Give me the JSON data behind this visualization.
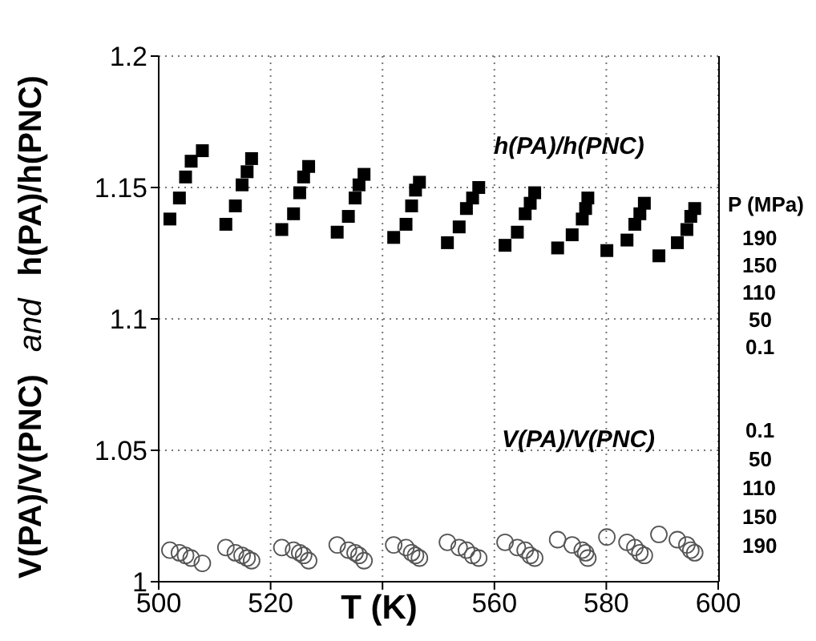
{
  "chart_data": {
    "type": "scatter",
    "xlabel": "T (K)",
    "ylabel": "V(PA)/V(PNC) and h(PA)/h(PNC)",
    "xlim": [
      500,
      600
    ],
    "xticks": [
      500,
      520,
      {
        "value": 540,
        "label": null
      },
      560,
      580,
      600
    ],
    "ylim": [
      1,
      1.2
    ],
    "yticks": [
      1,
      1.05,
      1.1,
      1.15,
      1.2
    ],
    "grid": true,
    "series": [
      {
        "color": "#000000",
        "marker": "square",
        "x": [
          502.0,
          503.7,
          504.8,
          505.8,
          507.8,
          512.0,
          513.7,
          514.9,
          515.8,
          516.6,
          522.0,
          524.1,
          525.2,
          525.9,
          526.8,
          531.9,
          533.9,
          535.1,
          535.8,
          536.7,
          542.0,
          544.2,
          545.2,
          545.9,
          546.6,
          551.6,
          553.7,
          555.0,
          556.1,
          557.2,
          561.9,
          564.1,
          565.5,
          566.4,
          567.2,
          571.3,
          573.9,
          575.7,
          576.3,
          576.7,
          580.1,
          583.7,
          585.1,
          586.0,
          586.8,
          589.4,
          592.7,
          594.4,
          595.1,
          595.8
        ],
        "values": [
          1.138,
          1.146,
          1.154,
          1.16,
          1.164,
          1.136,
          1.143,
          1.151,
          1.156,
          1.161,
          1.134,
          1.14,
          1.148,
          1.154,
          1.158,
          1.133,
          1.139,
          1.146,
          1.151,
          1.155,
          1.131,
          1.136,
          1.143,
          1.149,
          1.152,
          1.129,
          1.135,
          1.142,
          1.146,
          1.15,
          1.128,
          1.133,
          1.14,
          1.144,
          1.148,
          1.127,
          1.132,
          1.138,
          1.142,
          1.146,
          1.126,
          1.13,
          1.136,
          1.14,
          1.144,
          1.124,
          1.129,
          1.134,
          1.139,
          1.142
        ]
      },
      {
        "color": "#555555",
        "marker": "circle",
        "x": [
          502.0,
          503.7,
          504.8,
          505.8,
          507.8,
          512.0,
          513.7,
          514.9,
          515.8,
          516.6,
          522.0,
          524.1,
          525.2,
          525.9,
          526.8,
          531.9,
          533.9,
          535.1,
          535.8,
          536.7,
          542.0,
          544.2,
          545.2,
          545.9,
          546.6,
          551.6,
          553.7,
          555.0,
          556.1,
          557.2,
          561.9,
          564.1,
          565.5,
          566.4,
          567.2,
          571.3,
          573.9,
          575.7,
          576.3,
          576.7,
          580.1,
          583.7,
          585.1,
          586.0,
          586.8,
          589.4,
          592.7,
          594.4,
          595.1,
          595.8
        ],
        "values": [
          1.012,
          1.011,
          1.01,
          1.009,
          1.007,
          1.013,
          1.011,
          1.01,
          1.009,
          1.008,
          1.013,
          1.012,
          1.011,
          1.01,
          1.008,
          1.014,
          1.012,
          1.011,
          1.01,
          1.008,
          1.014,
          1.013,
          1.011,
          1.01,
          1.009,
          1.015,
          1.013,
          1.012,
          1.01,
          1.009,
          1.015,
          1.013,
          1.012,
          1.01,
          1.009,
          1.016,
          1.014,
          1.012,
          1.011,
          1.009,
          1.017,
          1.015,
          1.013,
          1.011,
          1.01,
          1.018,
          1.016,
          1.014,
          1.012,
          1.011
        ]
      }
    ],
    "annotations": [
      "h(PA)/h(PNC)",
      "P (MPa)",
      "190",
      "150",
      "110",
      "50",
      "0.1",
      "V(PA)/V(PNC)",
      "0.1",
      "50",
      "110",
      "150",
      "190"
    ]
  }
}
